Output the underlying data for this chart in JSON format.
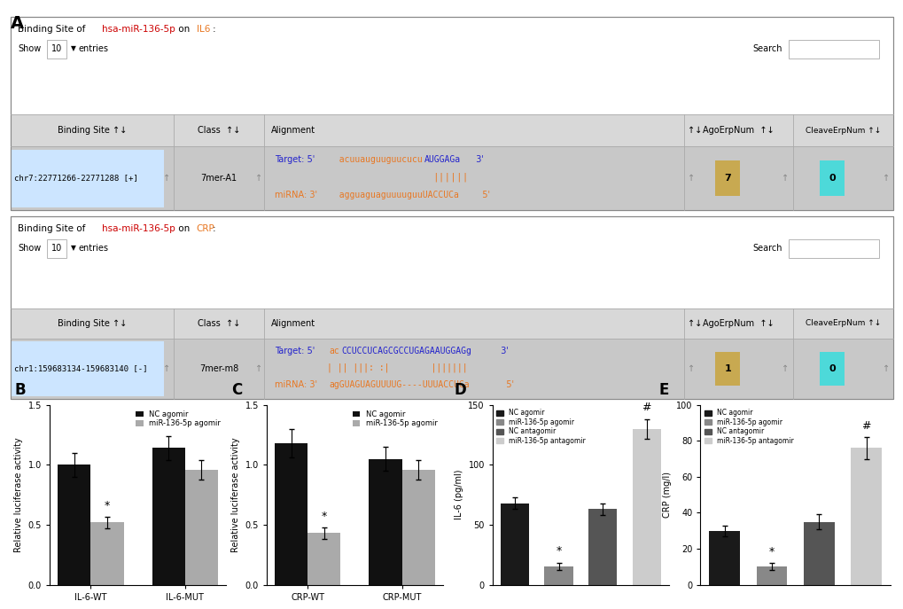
{
  "panel_A": {
    "IL6_title_parts": [
      {
        "text": "Binding Site of ",
        "color": "#000000"
      },
      {
        "text": "hsa-miR-136-5p",
        "color": "#cc0000"
      },
      {
        "text": " on ",
        "color": "#000000"
      },
      {
        "text": "IL6",
        "color": "#e87722"
      },
      {
        "text": ":",
        "color": "#000000"
      }
    ],
    "CRP_title_parts": [
      {
        "text": "Binding Site of ",
        "color": "#000000"
      },
      {
        "text": "hsa-miR-136-5p",
        "color": "#cc0000"
      },
      {
        "text": " on ",
        "color": "#000000"
      },
      {
        "text": "CRP",
        "color": "#e87722"
      },
      {
        "text": ":",
        "color": "#000000"
      }
    ],
    "IL6_row": {
      "binding_site": "chr7:22771266-22771288 [+]",
      "class_val": "7mer-A1",
      "ago_num": "7",
      "ago_color": "#c8a951",
      "cleave_num": "0",
      "cleave_color": "#4dd9d9"
    },
    "CRP_row": {
      "binding_site": "chr1:159683134-159683140 [-]",
      "class_val": "7mer-m8",
      "ago_num": "1",
      "ago_color": "#c8a951",
      "cleave_num": "0",
      "cleave_color": "#4dd9d9"
    }
  },
  "panel_B": {
    "categories": [
      "IL-6-WT",
      "IL-6-MUT"
    ],
    "NC_agomir": [
      1.0,
      1.14
    ],
    "miR_agomir": [
      0.52,
      0.96
    ],
    "NC_agomir_err": [
      0.1,
      0.1
    ],
    "miR_agomir_err": [
      0.05,
      0.08
    ],
    "ylabel": "Relative luciferase activity",
    "ylim": [
      0.0,
      1.5
    ],
    "yticks": [
      0.0,
      0.5,
      1.0,
      1.5
    ],
    "label": "B"
  },
  "panel_C": {
    "categories": [
      "CRP-WT",
      "CRP-MUT"
    ],
    "NC_agomir": [
      1.18,
      1.05
    ],
    "miR_agomir": [
      0.43,
      0.96
    ],
    "NC_agomir_err": [
      0.12,
      0.1
    ],
    "miR_agomir_err": [
      0.05,
      0.08
    ],
    "ylabel": "Relative luciferase activity",
    "ylim": [
      0.0,
      1.5
    ],
    "yticks": [
      0.0,
      0.5,
      1.0,
      1.5
    ],
    "label": "C"
  },
  "panel_D": {
    "categories": [
      "NC agomir",
      "miR-136-5p agomir",
      "NC antagomir",
      "miR-136-5p antagomir"
    ],
    "values": [
      68,
      15,
      63,
      130
    ],
    "errors": [
      5,
      3,
      5,
      8
    ],
    "colors": [
      "#1a1a1a",
      "#888888",
      "#555555",
      "#cccccc"
    ],
    "ylabel": "IL-6 (pg/ml)",
    "ylim": [
      0,
      150
    ],
    "yticks": [
      0,
      50,
      100,
      150
    ],
    "star_idx": 1,
    "hash_idx": 3,
    "label": "D"
  },
  "panel_E": {
    "categories": [
      "NC agomir",
      "miR-136-5p agomir",
      "NC antagomir",
      "miR-136-5p antagomir"
    ],
    "values": [
      30,
      10,
      35,
      76
    ],
    "errors": [
      3,
      2,
      4,
      6
    ],
    "colors": [
      "#1a1a1a",
      "#888888",
      "#555555",
      "#cccccc"
    ],
    "ylabel": "CRP (mg/l)",
    "ylim": [
      0,
      100
    ],
    "yticks": [
      0,
      20,
      40,
      60,
      80,
      100
    ],
    "star_idx": 1,
    "hash_idx": 3,
    "label": "E"
  },
  "bar_colors": {
    "NC_agomir": "#111111",
    "miR_agomir": "#aaaaaa"
  },
  "bg_color": "#ffffff"
}
